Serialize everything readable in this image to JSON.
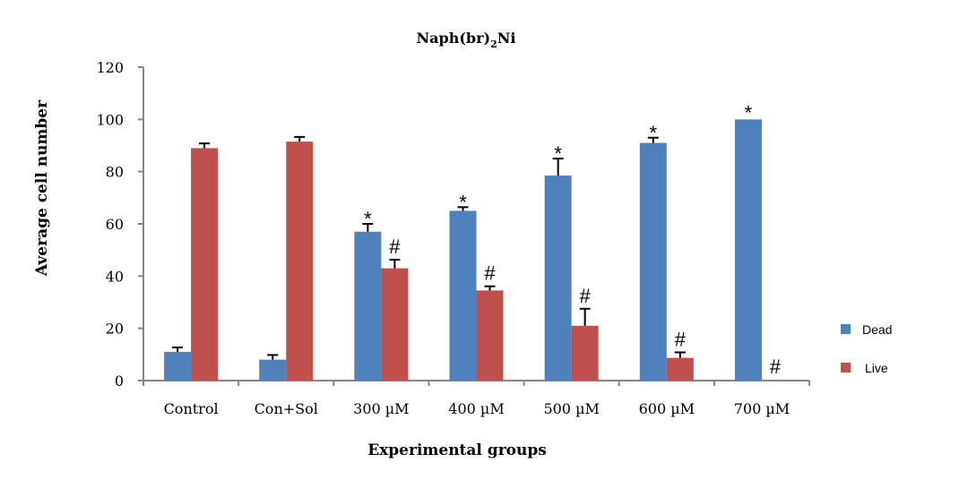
{
  "chart_data": {
    "type": "bar",
    "title_main": "Naph(br)",
    "title_sub": "2",
    "title_tail": "Ni",
    "xlabel": "Experimental groups",
    "ylabel": "Average cell number",
    "ylim": [
      0,
      120
    ],
    "yticks": [
      0,
      20,
      40,
      60,
      80,
      100,
      120
    ],
    "ytick_labels": [
      "0",
      "20",
      "40",
      "60",
      "80",
      "100",
      "120"
    ],
    "categories": [
      "Control",
      "Con+Sol",
      "300 µM",
      "400 µM",
      "500 µM",
      "600 µM",
      "700 µM"
    ],
    "series": [
      {
        "name": "Dead",
        "color": "#4f81bd",
        "values": [
          11,
          8,
          57,
          65,
          78.5,
          91,
          100
        ],
        "errors": [
          1.7,
          1.8,
          3,
          1.4,
          6.5,
          2,
          0
        ],
        "annotations": [
          "",
          "",
          "*",
          "*",
          "*",
          "*",
          "*"
        ]
      },
      {
        "name": "Live",
        "color": "#c0504d",
        "values": [
          89,
          91.5,
          43,
          34.5,
          21,
          8.7,
          0
        ],
        "errors": [
          1.8,
          1.8,
          3.3,
          1.6,
          6.5,
          2.1,
          0
        ],
        "annotations": [
          "",
          "",
          "#",
          "#",
          "#",
          "#",
          "#"
        ]
      }
    ],
    "legend": {
      "placement": "right",
      "entries": [
        "Dead",
        "Live"
      ]
    },
    "grid": false
  }
}
